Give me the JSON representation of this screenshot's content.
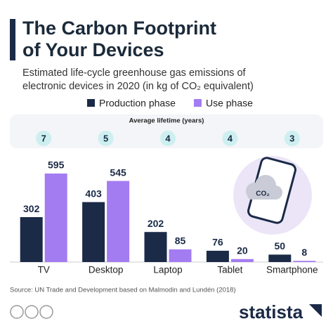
{
  "chart_data": {
    "type": "bar",
    "title": [
      "The Carbon Footprint",
      "of Your Devices"
    ],
    "subtitle": [
      "Estimated life-cycle greenhouse gas emissions of",
      "electronic devices in 2020 (in kg of CO₂ equivalent)"
    ],
    "categories": [
      "TV",
      "Desktop",
      "Laptop",
      "Tablet",
      "Smartphone"
    ],
    "series": [
      {
        "name": "Production phase",
        "color": "#1b2a47",
        "values": [
          302,
          403,
          202,
          76,
          50
        ]
      },
      {
        "name": "Use phase",
        "color": "#a47cf2",
        "values": [
          595,
          545,
          85,
          20,
          8
        ]
      }
    ],
    "lifetime": {
      "label": "Average lifetime (years)",
      "values": [
        7,
        5,
        4,
        4,
        3
      ]
    },
    "icon_label": "CO₂",
    "source": "Source: UN Trade and Development based on Malmodin and Lundén (2018)",
    "brand": "statista"
  }
}
